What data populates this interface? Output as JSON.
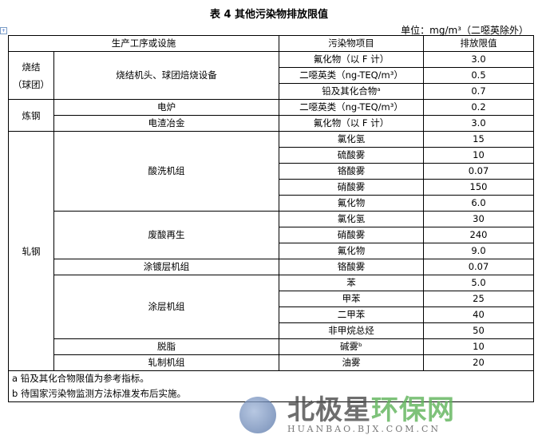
{
  "title": "表 4 其他污染物排放限值",
  "unit": "单位：mg/m³（二噁英除外）",
  "headers": [
    "生产工序或设施",
    "污染物项目",
    "排放限值"
  ],
  "groups": [
    {
      "name": "烧结\n（球团）",
      "subs": [
        {
          "name": "烧结机头、球团焙烧设备",
          "items": [
            [
              "氟化物（以 F 计）",
              "3.0"
            ],
            [
              "二噁英类（ng-TEQ/m³）",
              "0.5"
            ],
            [
              "铅及其化合物ᵃ",
              "0.7"
            ]
          ]
        }
      ]
    },
    {
      "name": "炼钢",
      "subs": [
        {
          "name": "电炉",
          "items": [
            [
              "二噁英类（ng-TEQ/m³）",
              "0.2"
            ]
          ]
        },
        {
          "name": "电渣冶金",
          "items": [
            [
              "氟化物（以 F 计）",
              "3.0"
            ]
          ]
        }
      ]
    },
    {
      "name": "轧钢",
      "subs": [
        {
          "name": "酸洗机组",
          "items": [
            [
              "氯化氢",
              "15"
            ],
            [
              "硫酸雾",
              "10"
            ],
            [
              "铬酸雾",
              "0.07"
            ],
            [
              "硝酸雾",
              "150"
            ],
            [
              "氟化物",
              "6.0"
            ]
          ]
        },
        {
          "name": "废酸再生",
          "items": [
            [
              "氯化氢",
              "30"
            ],
            [
              "硝酸雾",
              "240"
            ],
            [
              "氟化物",
              "9.0"
            ]
          ]
        },
        {
          "name": "涂镀层机组",
          "items": [
            [
              "铬酸雾",
              "0.07"
            ]
          ]
        },
        {
          "name": "涂层机组",
          "items": [
            [
              "苯",
              "5.0"
            ],
            [
              "甲苯",
              "25"
            ],
            [
              "二甲苯",
              "40"
            ],
            [
              "非甲烷总烃",
              "50"
            ]
          ]
        },
        {
          "name": "脱脂",
          "items": [
            [
              "碱雾ᵇ",
              "10"
            ]
          ]
        },
        {
          "name": "轧制机组",
          "items": [
            [
              "油雾",
              "20"
            ]
          ]
        }
      ]
    }
  ],
  "notes": [
    "a 铅及其化合物限值为参考指标。",
    "b 待国家污染物监测方法标准发布后实施。"
  ],
  "watermark": {
    "cn_a": "北极星",
    "cn_b": "环保网",
    "en": "HUANBAO.BJX.COM.CN"
  }
}
